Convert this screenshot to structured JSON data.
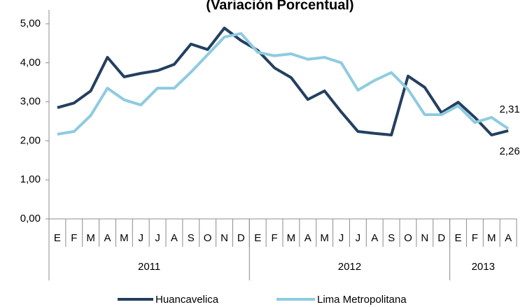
{
  "chart_data": {
    "type": "line",
    "title": "(Variación Porcentual)",
    "categories": [
      "E",
      "F",
      "M",
      "A",
      "M",
      "J",
      "J",
      "A",
      "S",
      "O",
      "N",
      "D",
      "E",
      "F",
      "M",
      "A",
      "M",
      "J",
      "J",
      "A",
      "S",
      "O",
      "N",
      "D",
      "E",
      "F",
      "M",
      "A"
    ],
    "groups": [
      {
        "label": "2011",
        "count": 12
      },
      {
        "label": "2012",
        "count": 12
      },
      {
        "label": "2013",
        "count": 4
      }
    ],
    "series": [
      {
        "name": "Huancavelica",
        "color": "#243f60",
        "values": [
          2.85,
          2.97,
          3.28,
          4.14,
          3.64,
          3.73,
          3.8,
          3.96,
          4.48,
          4.34,
          4.89,
          4.57,
          4.32,
          3.87,
          3.62,
          3.06,
          3.28,
          2.74,
          2.24,
          2.19,
          2.15,
          3.66,
          3.37,
          2.72,
          2.99,
          2.6,
          2.15,
          2.26
        ],
        "value_labels": [
          null,
          null,
          null,
          null,
          null,
          null,
          null,
          null,
          null,
          null,
          null,
          null,
          null,
          null,
          null,
          null,
          null,
          null,
          null,
          null,
          null,
          null,
          null,
          null,
          null,
          null,
          null,
          "2,26"
        ]
      },
      {
        "name": "Lima Metropolitana",
        "color": "#8ecbe0",
        "values": [
          2.17,
          2.24,
          2.65,
          3.35,
          3.05,
          2.92,
          3.35,
          3.35,
          3.76,
          4.21,
          4.66,
          4.75,
          4.27,
          4.18,
          4.23,
          4.09,
          4.14,
          4.0,
          3.3,
          3.55,
          3.75,
          3.32,
          2.67,
          2.67,
          2.9,
          2.47,
          2.6,
          2.31
        ],
        "value_labels": [
          null,
          null,
          null,
          null,
          null,
          null,
          null,
          null,
          null,
          null,
          null,
          null,
          null,
          null,
          null,
          null,
          null,
          null,
          null,
          null,
          null,
          null,
          null,
          null,
          null,
          null,
          null,
          "2,31"
        ]
      }
    ],
    "ylim": [
      0,
      5
    ],
    "yticks": [
      {
        "value": 0,
        "label": "0,00"
      },
      {
        "value": 1,
        "label": "1,00"
      },
      {
        "value": 2,
        "label": "2,00"
      },
      {
        "value": 3,
        "label": "3,00"
      },
      {
        "value": 4,
        "label": "4,00"
      },
      {
        "value": 5,
        "label": "5,00"
      }
    ],
    "legend": "bottom"
  }
}
